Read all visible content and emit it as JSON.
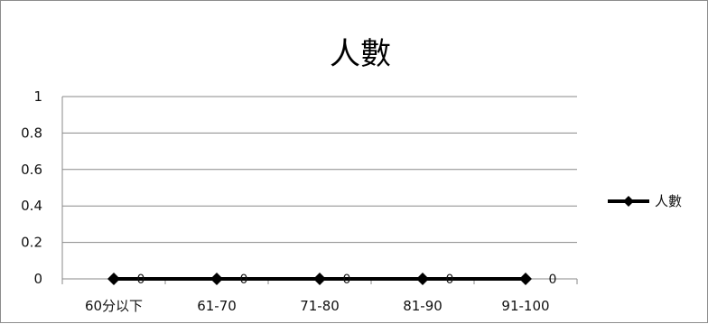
{
  "chart_data": {
    "type": "line",
    "title": "人數",
    "categories": [
      "60分以下",
      "61-70",
      "71-80",
      "81-90",
      "91-100"
    ],
    "series": [
      {
        "name": "人數",
        "values": [
          0,
          0,
          0,
          0,
          0
        ],
        "color": "#000000",
        "marker": "diamond"
      }
    ],
    "data_labels": [
      "0",
      "0",
      "0",
      "0",
      "0"
    ],
    "yticks": [
      "0",
      "0.2",
      "0.4",
      "0.6",
      "0.8",
      "1"
    ],
    "ylim": [
      0,
      1
    ],
    "grid": true,
    "legend_position": "right"
  }
}
